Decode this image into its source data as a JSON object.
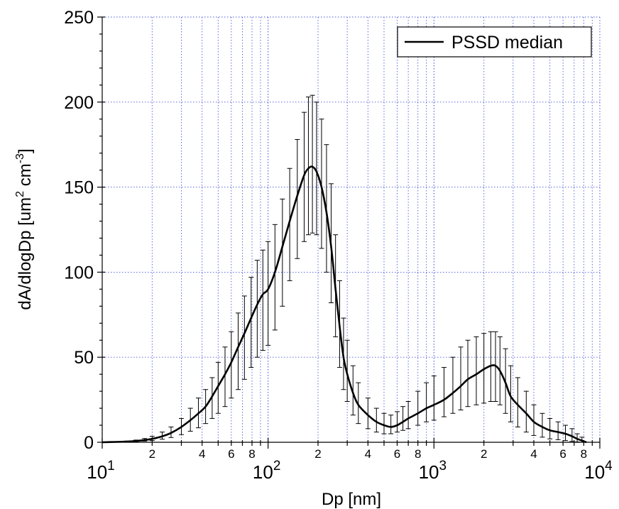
{
  "chart_data": {
    "type": "line",
    "x_scale": "log",
    "xlim": [
      10,
      10000
    ],
    "ylim": [
      0,
      250
    ],
    "grid": true,
    "legend_position": "top-right",
    "xlabel": "Dp [nm]",
    "ylabel_parts": {
      "main": "dA/dlogDp [um",
      "sup1": "2",
      "mid": " cm",
      "sup2": "-3",
      "end": "]"
    },
    "y_ticks": [
      0,
      50,
      100,
      150,
      200,
      250
    ],
    "x_major_ticks": [
      {
        "value": 10,
        "base": "10",
        "exp": "1"
      },
      {
        "value": 100,
        "base": "10",
        "exp": "2"
      },
      {
        "value": 1000,
        "base": "10",
        "exp": "3"
      },
      {
        "value": 10000,
        "base": "10",
        "exp": "4"
      }
    ],
    "x_minor_labels": [
      "2",
      "4",
      "6",
      "8"
    ],
    "series": [
      {
        "name": "PSSD median",
        "color": "#000000",
        "points": [
          [
            10,
            0
          ],
          [
            12,
            0.2
          ],
          [
            14,
            0.4
          ],
          [
            16,
            0.8
          ],
          [
            18,
            1.3
          ],
          [
            20,
            2
          ],
          [
            23,
            3.5
          ],
          [
            26,
            5.5
          ],
          [
            30,
            9
          ],
          [
            34,
            13
          ],
          [
            38,
            17
          ],
          [
            42,
            21
          ],
          [
            46,
            27
          ],
          [
            50,
            33
          ],
          [
            55,
            40
          ],
          [
            60,
            47
          ],
          [
            66,
            56
          ],
          [
            72,
            64
          ],
          [
            79,
            73
          ],
          [
            86,
            81
          ],
          [
            93,
            87
          ],
          [
            100,
            90
          ],
          [
            110,
            100
          ],
          [
            122,
            115
          ],
          [
            135,
            130
          ],
          [
            150,
            145
          ],
          [
            165,
            157
          ],
          [
            175,
            161
          ],
          [
            185,
            162
          ],
          [
            196,
            159
          ],
          [
            210,
            150
          ],
          [
            225,
            135
          ],
          [
            240,
            115
          ],
          [
            255,
            90
          ],
          [
            270,
            68
          ],
          [
            285,
            50
          ],
          [
            300,
            40
          ],
          [
            325,
            29
          ],
          [
            350,
            22
          ],
          [
            400,
            16
          ],
          [
            450,
            12
          ],
          [
            500,
            10
          ],
          [
            550,
            9
          ],
          [
            600,
            10
          ],
          [
            650,
            12
          ],
          [
            700,
            14
          ],
          [
            800,
            17
          ],
          [
            900,
            20
          ],
          [
            1000,
            22
          ],
          [
            1150,
            25
          ],
          [
            1300,
            29
          ],
          [
            1450,
            33
          ],
          [
            1600,
            37
          ],
          [
            1800,
            40
          ],
          [
            2000,
            43
          ],
          [
            2200,
            45
          ],
          [
            2350,
            45
          ],
          [
            2500,
            42
          ],
          [
            2700,
            35
          ],
          [
            2900,
            27
          ],
          [
            3200,
            22
          ],
          [
            3600,
            17
          ],
          [
            4000,
            12
          ],
          [
            4500,
            9
          ],
          [
            5000,
            7
          ],
          [
            5600,
            6
          ],
          [
            6200,
            5
          ],
          [
            6800,
            3.5
          ],
          [
            7300,
            2
          ],
          [
            7800,
            1
          ],
          [
            8300,
            0
          ]
        ]
      }
    ],
    "error_band": {
      "description_free": true,
      "points": [
        [
          10,
          0,
          0
        ],
        [
          12,
          0.3,
          0.1
        ],
        [
          14,
          0.7,
          0.2
        ],
        [
          16,
          1.3,
          0.4
        ],
        [
          18,
          2.2,
          0.7
        ],
        [
          20,
          3.5,
          1
        ],
        [
          23,
          6,
          1.8
        ],
        [
          26,
          9,
          2.8
        ],
        [
          30,
          14,
          4.5
        ],
        [
          34,
          20,
          6.5
        ],
        [
          38,
          26,
          8.5
        ],
        [
          42,
          31,
          11
        ],
        [
          46,
          38,
          14
        ],
        [
          50,
          47,
          17
        ],
        [
          55,
          56,
          21
        ],
        [
          60,
          65,
          26
        ],
        [
          66,
          76,
          31
        ],
        [
          72,
          86,
          37
        ],
        [
          79,
          97,
          44
        ],
        [
          86,
          107,
          50
        ],
        [
          93,
          113,
          54
        ],
        [
          100,
          118,
          57
        ],
        [
          110,
          128,
          66
        ],
        [
          122,
          143,
          80
        ],
        [
          135,
          161,
          95
        ],
        [
          150,
          178,
          108
        ],
        [
          165,
          194,
          118
        ],
        [
          175,
          203,
          122
        ],
        [
          185,
          204,
          123
        ],
        [
          196,
          200,
          122
        ],
        [
          210,
          190,
          114
        ],
        [
          225,
          175,
          100
        ],
        [
          240,
          152,
          82
        ],
        [
          255,
          122,
          62
        ],
        [
          270,
          95,
          44
        ],
        [
          285,
          73,
          31
        ],
        [
          300,
          60,
          24
        ],
        [
          325,
          45,
          16
        ],
        [
          350,
          35,
          11
        ],
        [
          400,
          26,
          8
        ],
        [
          450,
          20,
          6
        ],
        [
          500,
          17,
          5
        ],
        [
          550,
          16,
          5
        ],
        [
          600,
          18,
          6
        ],
        [
          650,
          21,
          7
        ],
        [
          700,
          24,
          8
        ],
        [
          800,
          30,
          10
        ],
        [
          900,
          35,
          12
        ],
        [
          1000,
          39,
          13
        ],
        [
          1150,
          44,
          15
        ],
        [
          1300,
          50,
          17
        ],
        [
          1450,
          56,
          19
        ],
        [
          1600,
          60,
          21
        ],
        [
          1800,
          62,
          22
        ],
        [
          2000,
          64,
          23
        ],
        [
          2200,
          65,
          24
        ],
        [
          2350,
          65,
          24
        ],
        [
          2500,
          62,
          22
        ],
        [
          2700,
          55,
          17
        ],
        [
          2900,
          45,
          12
        ],
        [
          3200,
          38,
          9
        ],
        [
          3600,
          30,
          6
        ],
        [
          4000,
          22,
          4
        ],
        [
          4500,
          17,
          3
        ],
        [
          5000,
          14,
          2
        ],
        [
          5600,
          12,
          1.5
        ],
        [
          6200,
          10,
          1
        ],
        [
          6800,
          8,
          0.5
        ],
        [
          7300,
          5,
          0.2
        ],
        [
          7800,
          3,
          0
        ],
        [
          8300,
          0,
          0
        ]
      ]
    }
  }
}
